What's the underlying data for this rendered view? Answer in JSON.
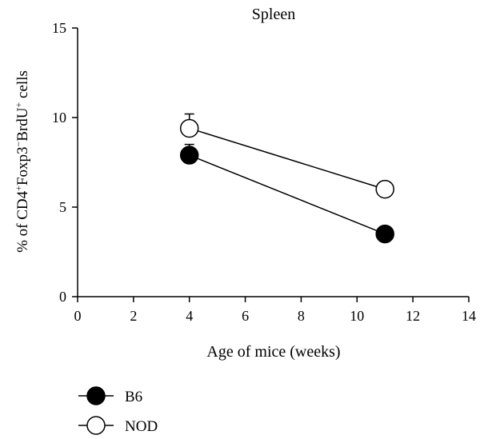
{
  "chart_data": {
    "type": "scatter",
    "title": "Spleen",
    "xlabel": "Age of mice (weeks)",
    "ylabel_parts": [
      {
        "text": "% of CD4",
        "sup": false
      },
      {
        "text": "+",
        "sup": true
      },
      {
        "text": "Foxp3",
        "sup": false
      },
      {
        "text": "−",
        "sup": true
      },
      {
        "text": "BrdU",
        "sup": false
      },
      {
        "text": "+",
        "sup": true
      },
      {
        "text": " cells",
        "sup": false
      }
    ],
    "xlim": [
      0,
      14
    ],
    "ylim": [
      0,
      15
    ],
    "xticks": [
      0,
      2,
      4,
      6,
      8,
      10,
      12,
      14
    ],
    "yticks": [
      0,
      5,
      10,
      15
    ],
    "grid": false,
    "legend_position": "bottom-left",
    "series": [
      {
        "name": "B6",
        "x": [
          4,
          11
        ],
        "y": [
          7.9,
          3.5
        ],
        "err_up": [
          0.6,
          0.1
        ],
        "marker": "filled-circle",
        "color": "#000000"
      },
      {
        "name": "NOD",
        "x": [
          4,
          11
        ],
        "y": [
          9.4,
          6.0
        ],
        "err_up": [
          0.8,
          0.1
        ],
        "marker": "open-circle",
        "color": "#000000"
      }
    ]
  }
}
